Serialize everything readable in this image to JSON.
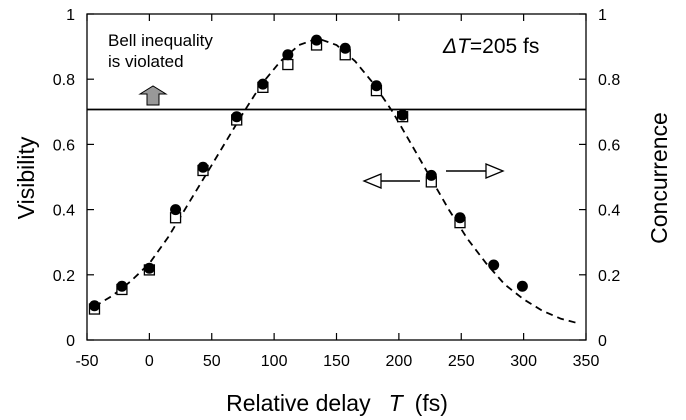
{
  "chart_data": {
    "type": "scatter",
    "title": "",
    "xlabel": {
      "text": "Relative delay",
      "symbol": "T",
      "unit": "(fs)"
    },
    "ylabel": "Visibility",
    "ylabel_right": "Concurrence",
    "xlim": [
      -50,
      350
    ],
    "ylim": [
      0,
      1
    ],
    "x_ticks": [
      -50,
      0,
      50,
      100,
      150,
      200,
      250,
      300,
      350
    ],
    "x_tick_labels": [
      "-50",
      "0",
      "50",
      "100",
      "150",
      "200",
      "250",
      "300",
      "350"
    ],
    "y_ticks": [
      0,
      0.2,
      0.4,
      0.6,
      0.8,
      1
    ],
    "y_tick_labels": [
      "0",
      "0.2",
      "0.4",
      "0.6",
      "0.8",
      "1"
    ],
    "y_right_tick_labels": [
      "0",
      "0.2",
      "0.4",
      "0.6",
      "0.8",
      "1"
    ],
    "grid": false,
    "threshold": {
      "y": 0.707,
      "annotation": [
        "Bell inequality",
        "is violated"
      ]
    },
    "delta_annotation": {
      "symbol": "ΔT",
      "value": "=205 fs"
    },
    "series": [
      {
        "marker": "filled-circle",
        "axis": "left",
        "x": [
          -44,
          -22,
          0,
          21,
          43,
          70,
          91,
          111,
          134,
          157,
          182,
          203,
          226,
          249,
          276,
          299
        ],
        "y": [
          0.105,
          0.165,
          0.22,
          0.4,
          0.53,
          0.685,
          0.785,
          0.875,
          0.92,
          0.895,
          0.78,
          0.69,
          0.505,
          0.375,
          0.23,
          0.165
        ]
      },
      {
        "marker": "open-square",
        "axis": "right",
        "x": [
          -44,
          -22,
          0,
          21,
          43,
          70,
          91,
          111,
          134,
          157,
          182,
          203,
          226,
          249
        ],
        "y": [
          0.095,
          0.155,
          0.215,
          0.375,
          0.52,
          0.675,
          0.775,
          0.845,
          0.905,
          0.875,
          0.765,
          0.685,
          0.485,
          0.36
        ]
      },
      {
        "line_style": "dashed",
        "x": [
          -44,
          -30,
          -15,
          0,
          15,
          30,
          45,
          60,
          75,
          90,
          105,
          120,
          135,
          150,
          165,
          180,
          195,
          210,
          225,
          240,
          255,
          270,
          285,
          300,
          315,
          330,
          345
        ],
        "y": [
          0.103,
          0.135,
          0.18,
          0.235,
          0.315,
          0.41,
          0.505,
          0.6,
          0.695,
          0.785,
          0.855,
          0.905,
          0.925,
          0.905,
          0.855,
          0.785,
          0.7,
          0.6,
          0.5,
          0.4,
          0.31,
          0.235,
          0.17,
          0.125,
          0.09,
          0.065,
          0.05
        ]
      }
    ],
    "colors": {
      "axis": "#000000",
      "marker": "#000000",
      "up_arrow_fill": "#999999"
    }
  }
}
